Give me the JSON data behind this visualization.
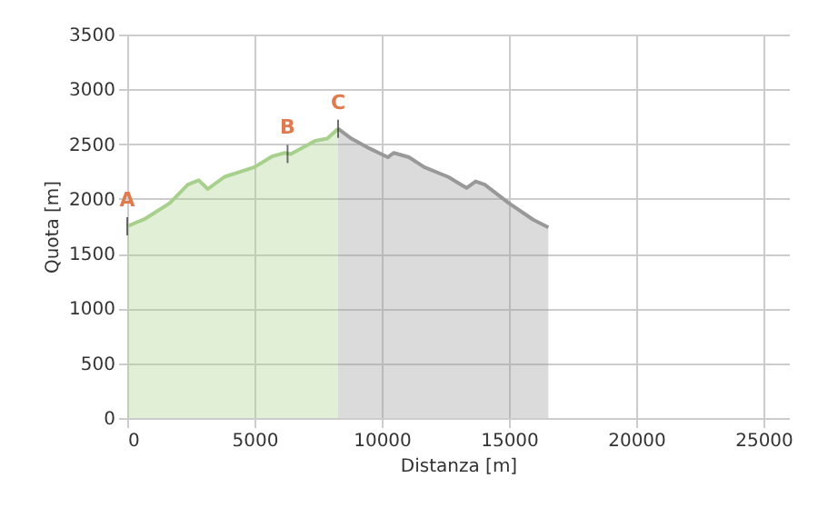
{
  "chart_data": {
    "type": "area",
    "xlabel": "Distanza [m]",
    "ylabel": "Quota [m]",
    "series": [
      {
        "color": "#a8d08d",
        "x": [
          0,
          714,
          1667,
          2381,
          2810,
          3167,
          3810,
          5000,
          5714,
          6190,
          6430,
          7381,
          7857,
          8286
        ],
        "values": [
          1750,
          1820,
          1960,
          2130,
          2170,
          2090,
          2200,
          2290,
          2390,
          2420,
          2410,
          2530,
          2550,
          2640
        ]
      },
      {
        "color": "#999999",
        "x": [
          8286,
          8810,
          9524,
          10238,
          10476,
          11071,
          11667,
          12619,
          13333,
          13690,
          14048,
          15000,
          15952,
          16548
        ],
        "values": [
          2640,
          2550,
          2460,
          2380,
          2420,
          2380,
          2290,
          2200,
          2100,
          2160,
          2130,
          1960,
          1810,
          1740
        ]
      }
    ],
    "annotations": [
      {
        "text": "A",
        "x": 0,
        "y": 1750
      },
      {
        "text": "B",
        "x": 6300,
        "y": 2410
      },
      {
        "text": "C",
        "x": 8286,
        "y": 2640
      }
    ],
    "xlim": [
      0,
      26000
    ],
    "xticks": [
      0,
      5000,
      10000,
      15000,
      20000,
      25000
    ],
    "ylim": [
      0,
      3500
    ],
    "yticks": [
      0,
      500,
      1000,
      1500,
      2000,
      2500,
      3000,
      3500
    ],
    "grid": true
  }
}
